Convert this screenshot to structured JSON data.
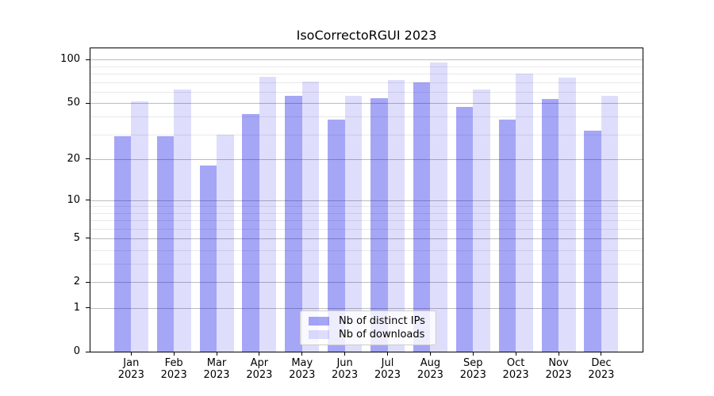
{
  "chart_data": {
    "type": "bar",
    "title": "IsoCorrectoRGUI 2023",
    "categories": [
      "Jan 2023",
      "Feb 2023",
      "Mar 2023",
      "Apr 2023",
      "May 2023",
      "Jun 2023",
      "Jul 2023",
      "Aug 2023",
      "Sep 2023",
      "Oct 2023",
      "Nov 2023",
      "Dec 2023"
    ],
    "series": [
      {
        "name": "Nb of distinct IPs",
        "color": "#a6a6f6",
        "fill": "rgba(0,0,230,0.35)",
        "values": [
          29,
          29,
          18,
          42,
          56,
          38,
          54,
          70,
          47,
          38,
          53,
          32
        ]
      },
      {
        "name": "Nb of downloads",
        "color": "#dedefb",
        "fill": "rgba(0,0,230,0.13)",
        "values": [
          51,
          62,
          30,
          76,
          71,
          56,
          72,
          96,
          62,
          80,
          75,
          56
        ]
      }
    ],
    "xlabel": "",
    "ylabel": "",
    "yscale": "log1p",
    "ylim": [
      0,
      120
    ],
    "yticks": [
      0,
      1,
      2,
      5,
      10,
      20,
      50,
      100
    ],
    "yticks_minor": [
      3,
      4,
      6,
      7,
      8,
      9,
      30,
      40,
      60,
      70,
      80,
      90
    ],
    "grid": true,
    "legend": {
      "position": "lower center"
    },
    "colors": {
      "grid_major": "#bdbdbd",
      "grid_minor": "#e9e9e9",
      "spine": "#000000",
      "text": "#000000",
      "legend_border": "#cccccc"
    }
  }
}
